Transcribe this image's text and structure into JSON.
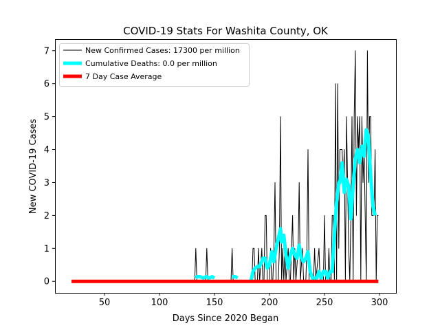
{
  "chart_data": {
    "type": "line",
    "title": "COVID-19 Stats For Washita County, OK",
    "xlabel": "Days Since 2020 Began",
    "ylabel": "New COVID-19 Cases",
    "xlim": [
      5,
      315
    ],
    "ylim": [
      -0.35,
      7.35
    ],
    "xticks": [
      50,
      100,
      150,
      200,
      250,
      300
    ],
    "yticks": [
      0,
      1,
      2,
      3,
      4,
      5,
      6,
      7
    ],
    "grid": false,
    "legend_position": "top-left",
    "series": [
      {
        "name": "New Confirmed Cases: 17300 per million",
        "color": "#000000",
        "line_width": 1,
        "points": [
          [
            20,
            0
          ],
          [
            132,
            0
          ],
          [
            133,
            1
          ],
          [
            134,
            0
          ],
          [
            142,
            0
          ],
          [
            143,
            1
          ],
          [
            144,
            0
          ],
          [
            165,
            0
          ],
          [
            166,
            1
          ],
          [
            167,
            0
          ],
          [
            184,
            0
          ],
          [
            185,
            1
          ],
          [
            186,
            1
          ],
          [
            187,
            0
          ],
          [
            189,
            0
          ],
          [
            190,
            1
          ],
          [
            191,
            0
          ],
          [
            193,
            1
          ],
          [
            194,
            0
          ],
          [
            195,
            0
          ],
          [
            196,
            2
          ],
          [
            197,
            2
          ],
          [
            198,
            0
          ],
          [
            200,
            0
          ],
          [
            201,
            1
          ],
          [
            202,
            0
          ],
          [
            203,
            0
          ],
          [
            204,
            1
          ],
          [
            205,
            3
          ],
          [
            206,
            0
          ],
          [
            208,
            0
          ],
          [
            209,
            1
          ],
          [
            210,
            5
          ],
          [
            211,
            0
          ],
          [
            212,
            1
          ],
          [
            213,
            0
          ],
          [
            214,
            1
          ],
          [
            215,
            0
          ],
          [
            217,
            1
          ],
          [
            218,
            0
          ],
          [
            219,
            0
          ],
          [
            220,
            1
          ],
          [
            221,
            2
          ],
          [
            222,
            0
          ],
          [
            223,
            1
          ],
          [
            224,
            0
          ],
          [
            226,
            1
          ],
          [
            227,
            3
          ],
          [
            228,
            0
          ],
          [
            230,
            1
          ],
          [
            231,
            0
          ],
          [
            233,
            0
          ],
          [
            234,
            1
          ],
          [
            235,
            4
          ],
          [
            236,
            0
          ],
          [
            240,
            0
          ],
          [
            241,
            1
          ],
          [
            242,
            0
          ],
          [
            245,
            1
          ],
          [
            246,
            0
          ],
          [
            249,
            0
          ],
          [
            250,
            2
          ],
          [
            251,
            0
          ],
          [
            253,
            0
          ],
          [
            254,
            1
          ],
          [
            255,
            0
          ],
          [
            256,
            0
          ],
          [
            257,
            2
          ],
          [
            258,
            2
          ],
          [
            259,
            0
          ],
          [
            260,
            6
          ],
          [
            261,
            0
          ],
          [
            262,
            6
          ],
          [
            263,
            1
          ],
          [
            264,
            4
          ],
          [
            265,
            4
          ],
          [
            266,
            4
          ],
          [
            267,
            3
          ],
          [
            268,
            4
          ],
          [
            269,
            0
          ],
          [
            270,
            5
          ],
          [
            271,
            3
          ],
          [
            272,
            1
          ],
          [
            273,
            0
          ],
          [
            274,
            2
          ],
          [
            275,
            5
          ],
          [
            276,
            0
          ],
          [
            277,
            5
          ],
          [
            278,
            7
          ],
          [
            279,
            2
          ],
          [
            280,
            5
          ],
          [
            281,
            4
          ],
          [
            282,
            5
          ],
          [
            283,
            0
          ],
          [
            284,
            5
          ],
          [
            285,
            3
          ],
          [
            286,
            4
          ],
          [
            287,
            2
          ],
          [
            288,
            0
          ],
          [
            289,
            7
          ],
          [
            290,
            3
          ],
          [
            291,
            5
          ],
          [
            292,
            5
          ],
          [
            293,
            2
          ],
          [
            294,
            2
          ],
          [
            295,
            2
          ],
          [
            296,
            4
          ],
          [
            297,
            0
          ],
          [
            298,
            2
          ],
          [
            299,
            2
          ]
        ]
      },
      {
        "name": "Cumulative Deaths: 0.0 per million",
        "color": "#00ffff",
        "line_width": 5,
        "segments": [
          [
            [
              133,
              0.1
            ],
            [
              134,
              0.14
            ],
            [
              137,
              0.14
            ],
            [
              140,
              0.1
            ],
            [
              142,
              0.14
            ],
            [
              143,
              0.14
            ],
            [
              145,
              0.1
            ],
            [
              148,
              0.14
            ],
            [
              150,
              0.1
            ]
          ],
          [
            [
              166,
              0.14
            ],
            [
              167,
              0.14
            ],
            [
              169,
              0.14
            ],
            [
              171,
              0.1
            ]
          ],
          [
            [
              183,
              0
            ],
            [
              184,
              0.14
            ],
            [
              185,
              0.3
            ],
            [
              187,
              0.4
            ],
            [
              189,
              0.45
            ],
            [
              191,
              0.45
            ],
            [
              193,
              0.6
            ],
            [
              194,
              0.7
            ],
            [
              196,
              0.7
            ],
            [
              198,
              0.4
            ],
            [
              200,
              0.5
            ],
            [
              202,
              0.9
            ],
            [
              204,
              0.6
            ],
            [
              206,
              1.0
            ],
            [
              208,
              1.3
            ],
            [
              210,
              1.6
            ],
            [
              211,
              1.2
            ],
            [
              213,
              1.4
            ],
            [
              215,
              0.8
            ],
            [
              217,
              0.4
            ],
            [
              219,
              0.8
            ],
            [
              221,
              1.0
            ],
            [
              223,
              0.8
            ],
            [
              225,
              0.7
            ],
            [
              227,
              1.1
            ],
            [
              229,
              0.7
            ],
            [
              231,
              0.6
            ],
            [
              233,
              0.7
            ],
            [
              235,
              0.9
            ],
            [
              237,
              0.3
            ],
            [
              239,
              0.1
            ],
            [
              241,
              0.1
            ],
            [
              243,
              0.1
            ],
            [
              245,
              0.3
            ],
            [
              247,
              0.1
            ],
            [
              249,
              0.3
            ],
            [
              251,
              0.3
            ],
            [
              253,
              0.1
            ],
            [
              255,
              0.3
            ],
            [
              257,
              0.3
            ],
            [
              259,
              1.4
            ],
            [
              261,
              2.4
            ],
            [
              263,
              3.0
            ],
            [
              264,
              3.0
            ],
            [
              266,
              3.6
            ],
            [
              268,
              2.7
            ],
            [
              270,
              3.1
            ],
            [
              272,
              2.9
            ],
            [
              274,
              1.9
            ],
            [
              276,
              2.9
            ],
            [
              278,
              3.7
            ],
            [
              280,
              4.0
            ],
            [
              282,
              3.6
            ],
            [
              284,
              4.1
            ],
            [
              286,
              3.8
            ],
            [
              288,
              4.6
            ],
            [
              290,
              4.4
            ],
            [
              292,
              3.2
            ],
            [
              294,
              2.3
            ],
            [
              296,
              2.0
            ]
          ]
        ]
      },
      {
        "name": "7 Day Case Average",
        "color": "#ff0000",
        "line_width": 5,
        "points": [
          [
            20,
            0
          ],
          [
            299,
            0
          ]
        ]
      }
    ]
  }
}
